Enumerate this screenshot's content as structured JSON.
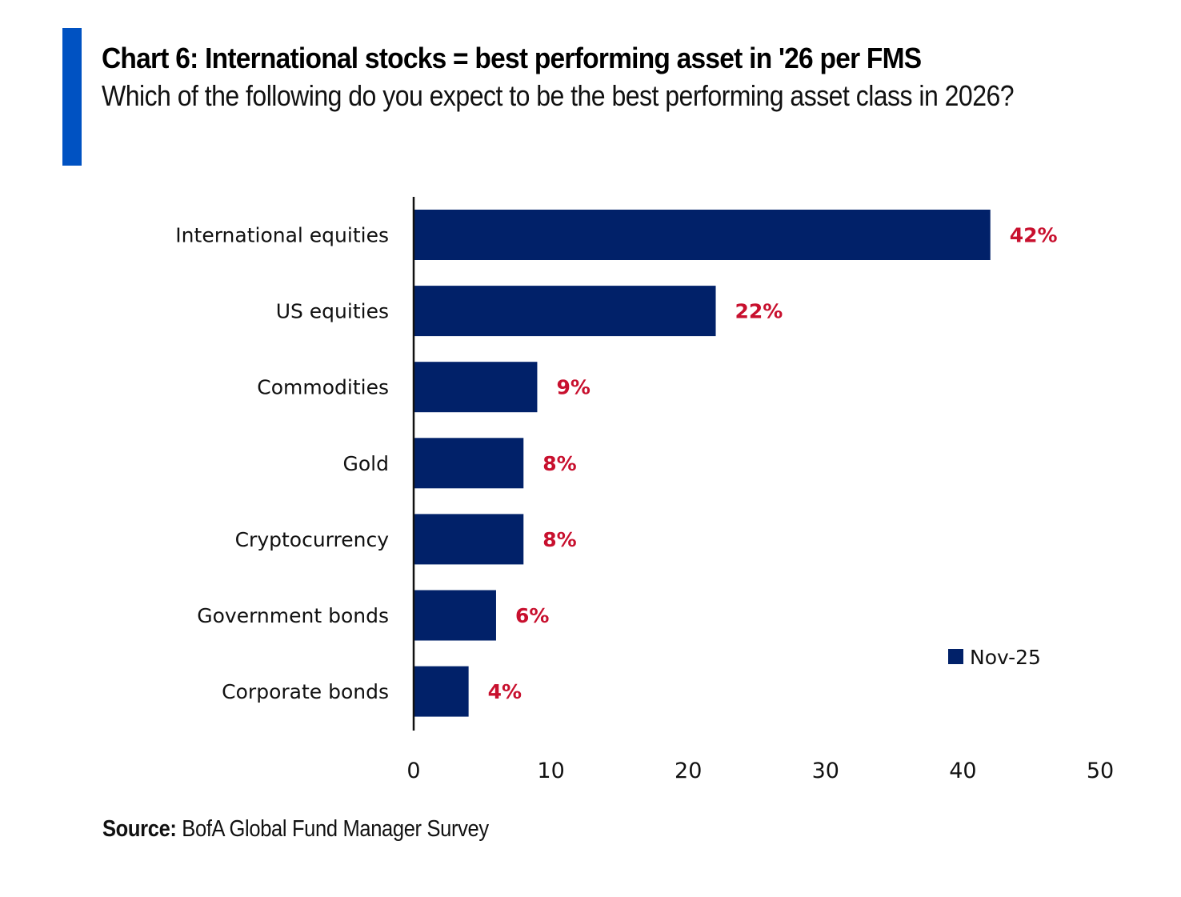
{
  "header": {
    "title": "Chart 6: International stocks = best performing asset in '26 per FMS",
    "subtitle": "Which of the following do you expect to be the best performing asset class in 2026?"
  },
  "colors": {
    "accent": "#0052c2",
    "bar": "#012169",
    "value_label": "#c8102e",
    "axis": "#111111"
  },
  "chart_data": {
    "type": "bar",
    "orientation": "horizontal",
    "title": "Chart 6: International stocks = best performing asset in '26 per FMS",
    "subtitle": "Which of the following do you expect to be the best performing asset class in 2026?",
    "categories": [
      "International equities",
      "US equities",
      "Commodities",
      "Gold",
      "Cryptocurrency",
      "Government bonds",
      "Corporate bonds"
    ],
    "series": [
      {
        "name": "Nov-25",
        "values": [
          42,
          22,
          9,
          8,
          8,
          6,
          4
        ]
      }
    ],
    "data_labels": [
      "42%",
      "22%",
      "9%",
      "8%",
      "8%",
      "6%",
      "4%"
    ],
    "xlabel": "",
    "ylabel": "",
    "xlim": [
      0,
      50
    ],
    "xticks": [
      0,
      10,
      20,
      30,
      40,
      50
    ],
    "xtick_labels": [
      "0",
      "10",
      "20",
      "30",
      "40",
      "50"
    ],
    "grid": false,
    "legend": {
      "entries": [
        "Nov-25"
      ],
      "placement": "bottom-right"
    }
  },
  "footer": {
    "source_label": "Source:",
    "source_text": "BofA Global Fund Manager Survey"
  }
}
